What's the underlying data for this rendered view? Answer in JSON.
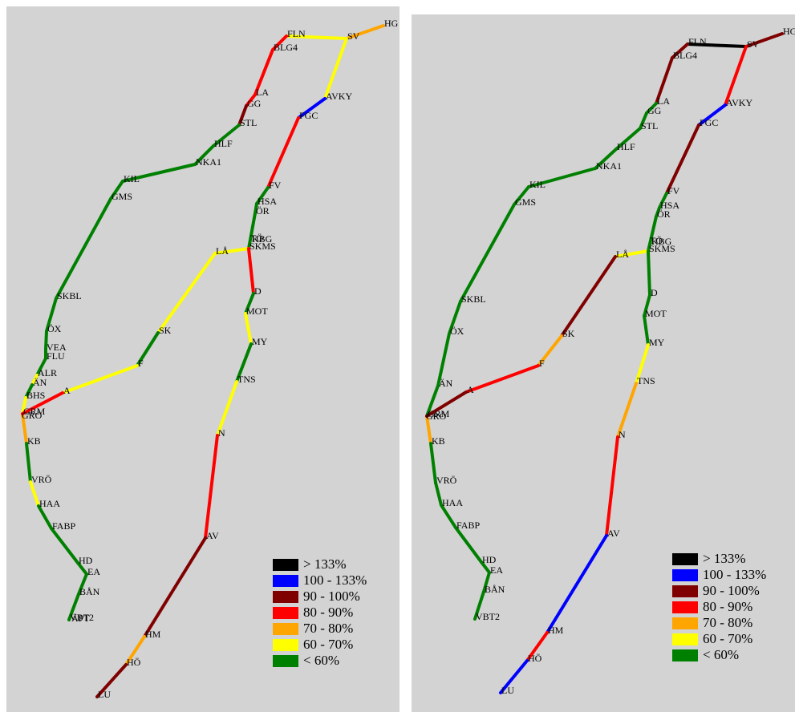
{
  "panels": [
    {
      "stations": [
        "FLN",
        "SV",
        "HG",
        "BLG4",
        "LA",
        "GG",
        "STL",
        "HLF",
        "NKA1",
        "KIL",
        "GMS",
        "SKBL",
        "ÖX",
        "VEA",
        "FLU",
        "ALR",
        "ÄN",
        "BHS",
        "GRM",
        "GRÖ",
        "KB",
        "VRÖ",
        "HAA",
        "FABP",
        "HD",
        "EA",
        "BÅN",
        "VBT2",
        "ÄPT",
        "AVKY",
        "FGC",
        "FV",
        "HSA",
        "ÖR",
        "TÖ",
        "KBG",
        "SKMS",
        "LÅ",
        "D",
        "MOT",
        "MY",
        "TNS",
        "N",
        "AV",
        "HM",
        "HÖ",
        "LU",
        "SK",
        "F",
        "A"
      ],
      "legend": [
        {
          "label": "> 133%",
          "color": "#000000"
        },
        {
          "label": "100 - 133%",
          "color": "#0000ff"
        },
        {
          "label": "90 - 100%",
          "color": "#800000"
        },
        {
          "label": "80 - 90%",
          "color": "#ff0000"
        },
        {
          "label": "70 - 80%",
          "color": "#ffa500"
        },
        {
          "label": "60 - 70%",
          "color": "#ffff00"
        },
        {
          "label": "< 60%",
          "color": "#008000"
        }
      ]
    },
    {
      "stations": [
        "FLN",
        "SV",
        "HG",
        "BLG4",
        "LA",
        "GG",
        "STL",
        "HLF",
        "NKA1",
        "KIL",
        "GMS",
        "SKBL",
        "ÖX",
        "ÄN",
        "GRM",
        "GRÖ",
        "KB",
        "VRÖ",
        "HAA",
        "FABP",
        "HD",
        "EA",
        "BÅN",
        "VBT2",
        "AVKY",
        "FGC",
        "FV",
        "HSA",
        "ÖR",
        "TÖ",
        "KBG",
        "SKMS",
        "LÅ",
        "D",
        "MOT",
        "MY",
        "TNS",
        "N",
        "AV",
        "HM",
        "HÖ",
        "LU",
        "SK",
        "F",
        "A"
      ],
      "legend": [
        {
          "label": "> 133%",
          "color": "#000000"
        },
        {
          "label": "100 - 133%",
          "color": "#0000ff"
        },
        {
          "label": "90 - 100%",
          "color": "#800000"
        },
        {
          "label": "80 - 90%",
          "color": "#ff0000"
        },
        {
          "label": "70 - 80%",
          "color": "#ffa500"
        },
        {
          "label": "60 - 70%",
          "color": "#ffff00"
        },
        {
          "label": "< 60%",
          "color": "#008000"
        }
      ]
    }
  ]
}
